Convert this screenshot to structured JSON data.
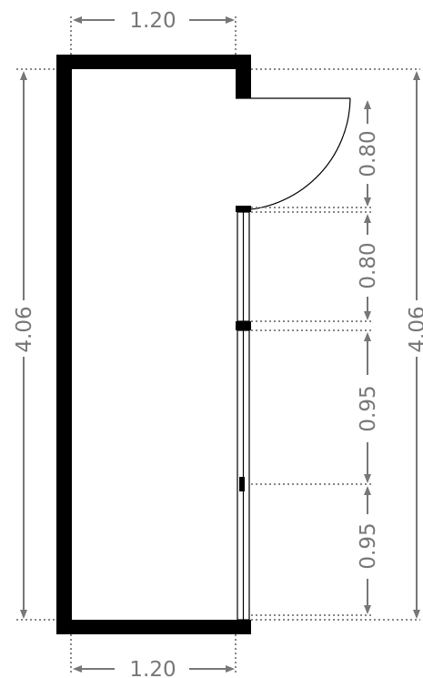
{
  "plan": {
    "dimensions": {
      "top_width": "1.20",
      "bottom_width": "1.20",
      "left_height": "4.06",
      "right_height": "4.06",
      "door_width": "0.80",
      "window_1": "0.80",
      "window_2": "0.95",
      "window_3": "0.95"
    },
    "colors": {
      "wall": "#000000",
      "dimension": "#777777"
    }
  }
}
